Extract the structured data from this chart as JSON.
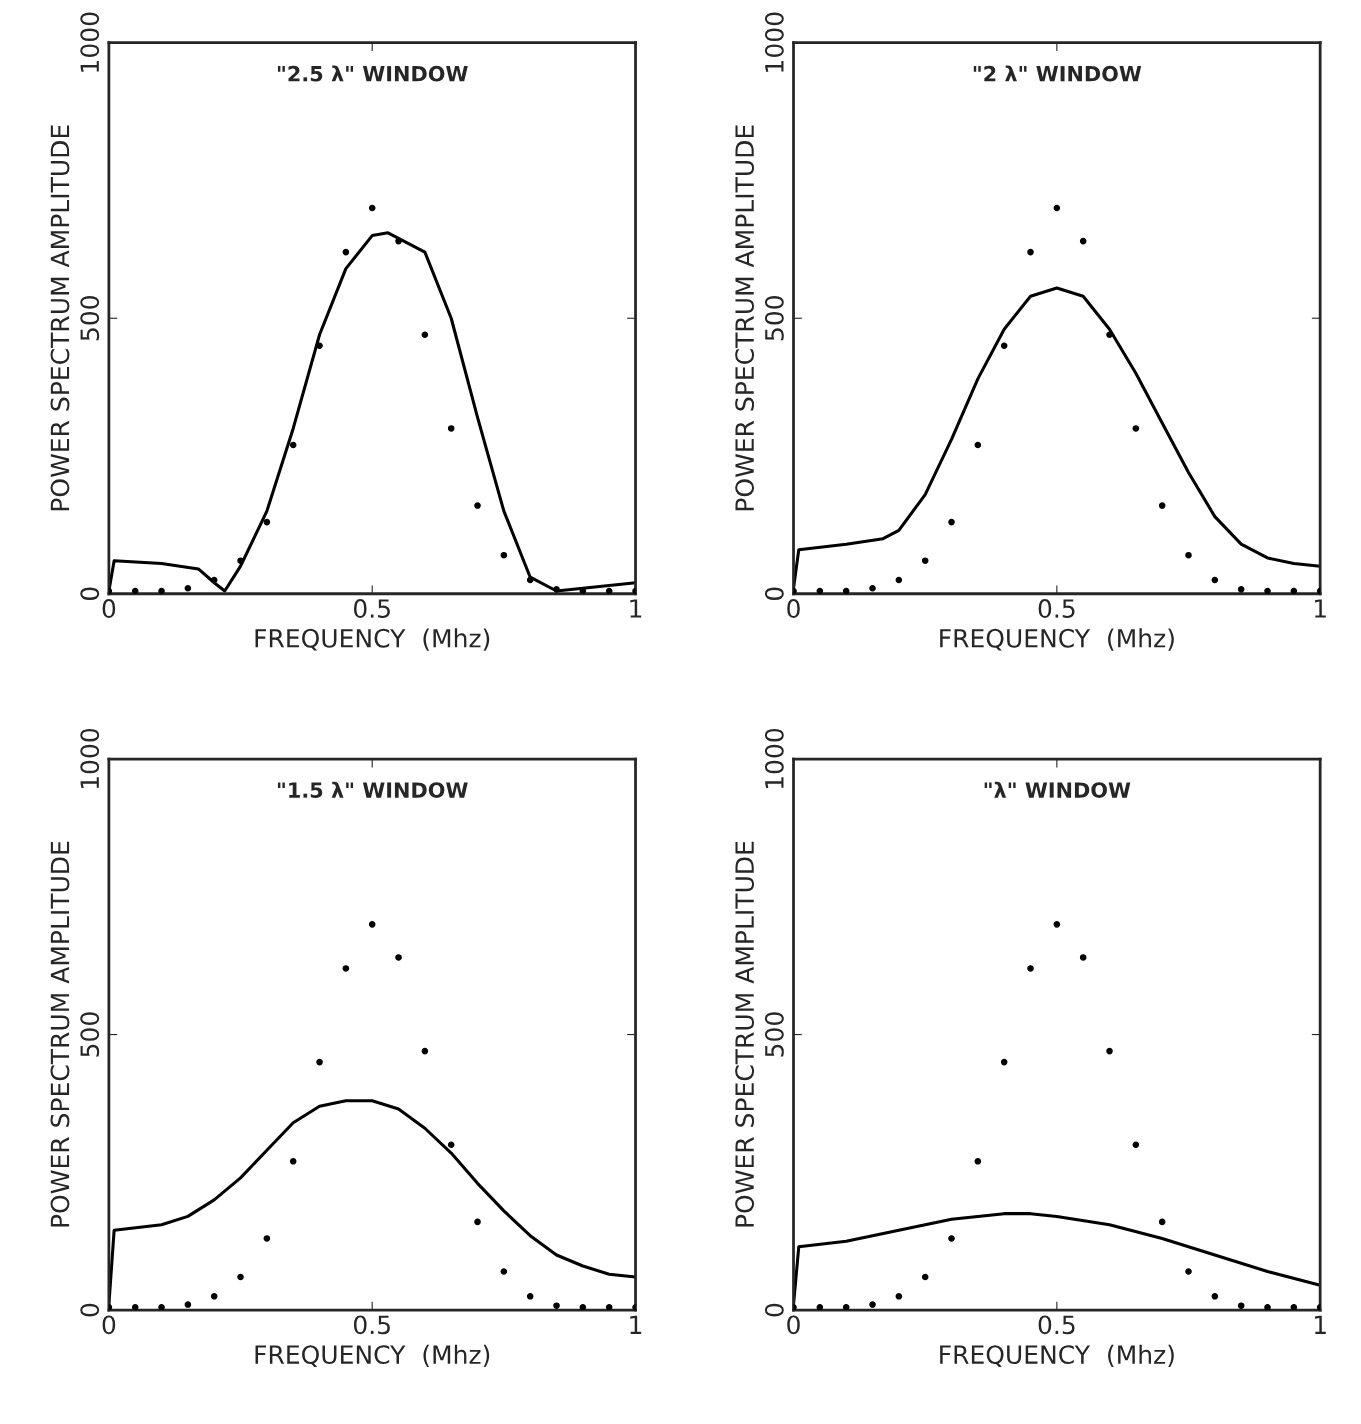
{
  "chart_data": [
    {
      "type": "line",
      "title": "\"2.5 λ\" WINDOW",
      "xlabel": "FREQUENCY  (Mhz)",
      "ylabel": "POWER SPECTRUM AMPLITUDE",
      "xlim": [
        0,
        1
      ],
      "ylim": [
        0,
        1000
      ],
      "xticks": [
        {
          "value": 0,
          "label": "0"
        },
        {
          "value": 0.5,
          "label": "0.5"
        },
        {
          "value": 1,
          "label": "1"
        }
      ],
      "yticks": [
        0,
        500,
        1000
      ],
      "grid": false,
      "series": [
        {
          "color": "#000000",
          "marker": "none",
          "line_style": "solid",
          "x": [
            0,
            0.01,
            0.1,
            0.17,
            0.2,
            0.22,
            0.25,
            0.3,
            0.35,
            0.4,
            0.45,
            0.5,
            0.53,
            0.6,
            0.65,
            0.7,
            0.75,
            0.8,
            0.85,
            0.9,
            1.0
          ],
          "values": [
            5,
            60,
            55,
            45,
            20,
            5,
            50,
            150,
            300,
            470,
            590,
            650,
            655,
            620,
            500,
            320,
            150,
            30,
            5,
            10,
            20
          ]
        },
        {
          "type": "scatter",
          "color": "#000000",
          "marker": "circle",
          "x": [
            0,
            0.05,
            0.1,
            0.15,
            0.2,
            0.25,
            0.3,
            0.35,
            0.4,
            0.45,
            0.5,
            0.55,
            0.6,
            0.65,
            0.7,
            0.75,
            0.8,
            0.85,
            0.9,
            0.95,
            1.0
          ],
          "values": [
            5,
            5,
            5,
            10,
            25,
            60,
            130,
            270,
            450,
            620,
            700,
            640,
            470,
            300,
            160,
            70,
            25,
            8,
            5,
            5,
            5
          ]
        }
      ]
    },
    {
      "type": "line",
      "title": "\"2 λ\" WINDOW",
      "xlabel": "FREQUENCY  (Mhz)",
      "ylabel": "POWER SPECTRUM AMPLITUDE",
      "xlim": [
        0,
        1
      ],
      "ylim": [
        0,
        1000
      ],
      "xticks": [
        {
          "value": 0,
          "label": "0"
        },
        {
          "value": 0.5,
          "label": "0.5"
        },
        {
          "value": 1,
          "label": "1"
        }
      ],
      "yticks": [
        0,
        500,
        1000
      ],
      "grid": false,
      "series": [
        {
          "color": "#000000",
          "marker": "none",
          "line_style": "solid",
          "x": [
            0,
            0.01,
            0.1,
            0.17,
            0.2,
            0.25,
            0.3,
            0.35,
            0.4,
            0.45,
            0.5,
            0.55,
            0.6,
            0.65,
            0.7,
            0.75,
            0.8,
            0.85,
            0.9,
            0.95,
            1.0
          ],
          "values": [
            10,
            80,
            90,
            100,
            115,
            180,
            280,
            390,
            480,
            540,
            555,
            540,
            480,
            400,
            310,
            220,
            140,
            90,
            65,
            55,
            50
          ]
        },
        {
          "type": "scatter",
          "color": "#000000",
          "marker": "circle",
          "x": [
            0,
            0.05,
            0.1,
            0.15,
            0.2,
            0.25,
            0.3,
            0.35,
            0.4,
            0.45,
            0.5,
            0.55,
            0.6,
            0.65,
            0.7,
            0.75,
            0.8,
            0.85,
            0.9,
            0.95,
            1.0
          ],
          "values": [
            5,
            5,
            5,
            10,
            25,
            60,
            130,
            270,
            450,
            620,
            700,
            640,
            470,
            300,
            160,
            70,
            25,
            8,
            5,
            5,
            5
          ]
        }
      ]
    },
    {
      "type": "line",
      "title": "\"1.5 λ\" WINDOW",
      "xlabel": "FREQUENCY  (Mhz)",
      "ylabel": "POWER SPECTRUM AMPLITUDE",
      "xlim": [
        0,
        1
      ],
      "ylim": [
        0,
        1000
      ],
      "xticks": [
        {
          "value": 0,
          "label": "0"
        },
        {
          "value": 0.5,
          "label": "0.5"
        },
        {
          "value": 1,
          "label": "1"
        }
      ],
      "yticks": [
        0,
        500,
        1000
      ],
      "grid": false,
      "series": [
        {
          "color": "#000000",
          "marker": "none",
          "line_style": "solid",
          "x": [
            0,
            0.01,
            0.1,
            0.15,
            0.2,
            0.25,
            0.3,
            0.35,
            0.4,
            0.45,
            0.5,
            0.55,
            0.6,
            0.65,
            0.7,
            0.75,
            0.8,
            0.85,
            0.9,
            0.95,
            1.0
          ],
          "values": [
            10,
            145,
            155,
            170,
            200,
            240,
            290,
            340,
            370,
            380,
            380,
            365,
            330,
            285,
            230,
            180,
            135,
            100,
            80,
            65,
            60
          ]
        },
        {
          "type": "scatter",
          "color": "#000000",
          "marker": "circle",
          "x": [
            0,
            0.05,
            0.1,
            0.15,
            0.2,
            0.25,
            0.3,
            0.35,
            0.4,
            0.45,
            0.5,
            0.55,
            0.6,
            0.65,
            0.7,
            0.75,
            0.8,
            0.85,
            0.9,
            0.95,
            1.0
          ],
          "values": [
            5,
            5,
            5,
            10,
            25,
            60,
            130,
            270,
            450,
            620,
            700,
            640,
            470,
            300,
            160,
            70,
            25,
            8,
            5,
            5,
            5
          ]
        }
      ]
    },
    {
      "type": "line",
      "title": "\"λ\" WINDOW",
      "xlabel": "FREQUENCY  (Mhz)",
      "ylabel": "POWER SPECTRUM AMPLITUDE",
      "xlim": [
        0,
        1
      ],
      "ylim": [
        0,
        1000
      ],
      "xticks": [
        {
          "value": 0,
          "label": "0"
        },
        {
          "value": 0.5,
          "label": "0.5"
        },
        {
          "value": 1,
          "label": "1"
        }
      ],
      "yticks": [
        0,
        500,
        1000
      ],
      "grid": false,
      "series": [
        {
          "color": "#000000",
          "marker": "none",
          "line_style": "solid",
          "x": [
            0,
            0.01,
            0.1,
            0.2,
            0.3,
            0.4,
            0.45,
            0.5,
            0.6,
            0.7,
            0.8,
            0.9,
            1.0
          ],
          "values": [
            10,
            115,
            125,
            145,
            165,
            175,
            175,
            170,
            155,
            130,
            100,
            70,
            45
          ]
        },
        {
          "type": "scatter",
          "color": "#000000",
          "marker": "circle",
          "x": [
            0,
            0.05,
            0.1,
            0.15,
            0.2,
            0.25,
            0.3,
            0.35,
            0.4,
            0.45,
            0.5,
            0.55,
            0.6,
            0.65,
            0.7,
            0.75,
            0.8,
            0.85,
            0.9,
            0.95,
            1.0
          ],
          "values": [
            5,
            5,
            5,
            10,
            25,
            60,
            130,
            270,
            450,
            620,
            700,
            640,
            470,
            300,
            160,
            70,
            25,
            8,
            5,
            5,
            5
          ]
        }
      ]
    }
  ]
}
